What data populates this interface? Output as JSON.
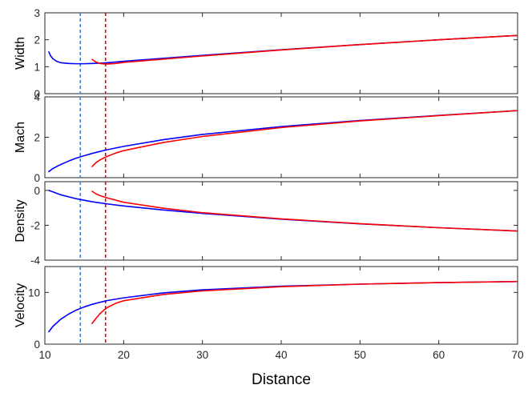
{
  "chart_data": {
    "type": "line",
    "xlabel": "Distance",
    "xlim": [
      10,
      70
    ],
    "xticks": [
      10,
      20,
      30,
      40,
      50,
      60,
      70
    ],
    "colors": {
      "blue": "#0000ff",
      "red": "#ff0000",
      "blue_dashed": "#3f7fc6",
      "red_dashed": "#e00000"
    },
    "vertical_lines": [
      {
        "x": 14.5,
        "color": "blue_dashed",
        "style": "dashed"
      },
      {
        "x": 17.7,
        "color": "red_dashed",
        "style": "dashed"
      }
    ],
    "panels": [
      {
        "ylabel": "Width",
        "ylim": [
          0,
          3
        ],
        "yticks": [
          0,
          1,
          2,
          3
        ],
        "series": [
          {
            "color": "blue",
            "x": [
              10.5,
              10.7,
              11,
              11.5,
              12,
              13,
              14,
              15,
              16,
              17,
              17.5,
              18,
              20,
              30,
              40,
              50,
              60,
              70
            ],
            "y": [
              1.55,
              1.42,
              1.3,
              1.2,
              1.15,
              1.12,
              1.11,
              1.11,
              1.12,
              1.13,
              1.14,
              1.15,
              1.2,
              1.42,
              1.63,
              1.82,
              2.0,
              2.16
            ]
          },
          {
            "color": "red",
            "x": [
              16,
              16.5,
              17,
              17.5,
              18,
              19,
              20,
              30,
              40,
              50,
              60,
              70
            ],
            "y": [
              1.27,
              1.17,
              1.12,
              1.1,
              1.1,
              1.12,
              1.16,
              1.4,
              1.62,
              1.82,
              2.0,
              2.16
            ]
          }
        ]
      },
      {
        "ylabel": "Mach",
        "ylim": [
          0,
          4
        ],
        "yticks": [
          0,
          2,
          4
        ],
        "series": [
          {
            "color": "blue",
            "x": [
              10.5,
              11,
              12,
              13,
              14,
              15,
              16,
              17,
              18,
              20,
              25,
              30,
              40,
              50,
              60,
              70
            ],
            "y": [
              0.3,
              0.45,
              0.65,
              0.82,
              0.97,
              1.09,
              1.2,
              1.3,
              1.39,
              1.55,
              1.88,
              2.14,
              2.53,
              2.83,
              3.08,
              3.32
            ]
          },
          {
            "color": "red",
            "x": [
              16,
              16.5,
              17,
              17.5,
              18,
              19,
              20,
              25,
              30,
              40,
              50,
              60,
              70
            ],
            "y": [
              0.55,
              0.75,
              0.88,
              0.98,
              1.07,
              1.22,
              1.34,
              1.74,
              2.04,
              2.48,
              2.81,
              3.07,
              3.32
            ]
          }
        ]
      },
      {
        "ylabel": "Density",
        "ylim": [
          -4,
          0.5
        ],
        "yticks": [
          -4,
          -2,
          0
        ],
        "series": [
          {
            "color": "blue",
            "x": [
              10.5,
              11,
              12,
              14,
              16,
              18,
              20,
              25,
              30,
              40,
              50,
              60,
              70
            ],
            "y": [
              0,
              -0.08,
              -0.25,
              -0.48,
              -0.65,
              -0.78,
              -0.89,
              -1.12,
              -1.32,
              -1.65,
              -1.92,
              -2.14,
              -2.33
            ]
          },
          {
            "color": "red",
            "x": [
              16,
              16.5,
              17,
              18,
              20,
              25,
              30,
              40,
              50,
              60,
              70
            ],
            "y": [
              -0.05,
              -0.2,
              -0.3,
              -0.44,
              -0.68,
              -1.02,
              -1.28,
              -1.63,
              -1.91,
              -2.14,
              -2.33
            ]
          }
        ]
      },
      {
        "ylabel": "Velocity",
        "ylim": [
          0,
          15
        ],
        "yticks": [
          0,
          10
        ],
        "series": [
          {
            "color": "blue",
            "x": [
              10.5,
              11,
              12,
              13,
              14,
              15,
              16,
              17,
              18,
              20,
              25,
              30,
              40,
              50,
              60,
              70
            ],
            "y": [
              2.4,
              3.4,
              4.8,
              5.8,
              6.6,
              7.2,
              7.7,
              8.1,
              8.45,
              8.95,
              9.9,
              10.5,
              11.2,
              11.6,
              11.9,
              12.1
            ]
          },
          {
            "color": "red",
            "x": [
              16,
              16.5,
              17,
              17.5,
              18,
              19,
              20,
              25,
              30,
              40,
              50,
              60,
              70
            ],
            "y": [
              4.0,
              5.0,
              5.9,
              6.6,
              7.15,
              7.9,
              8.4,
              9.6,
              10.3,
              11.1,
              11.6,
              11.9,
              12.1
            ]
          }
        ]
      }
    ]
  }
}
